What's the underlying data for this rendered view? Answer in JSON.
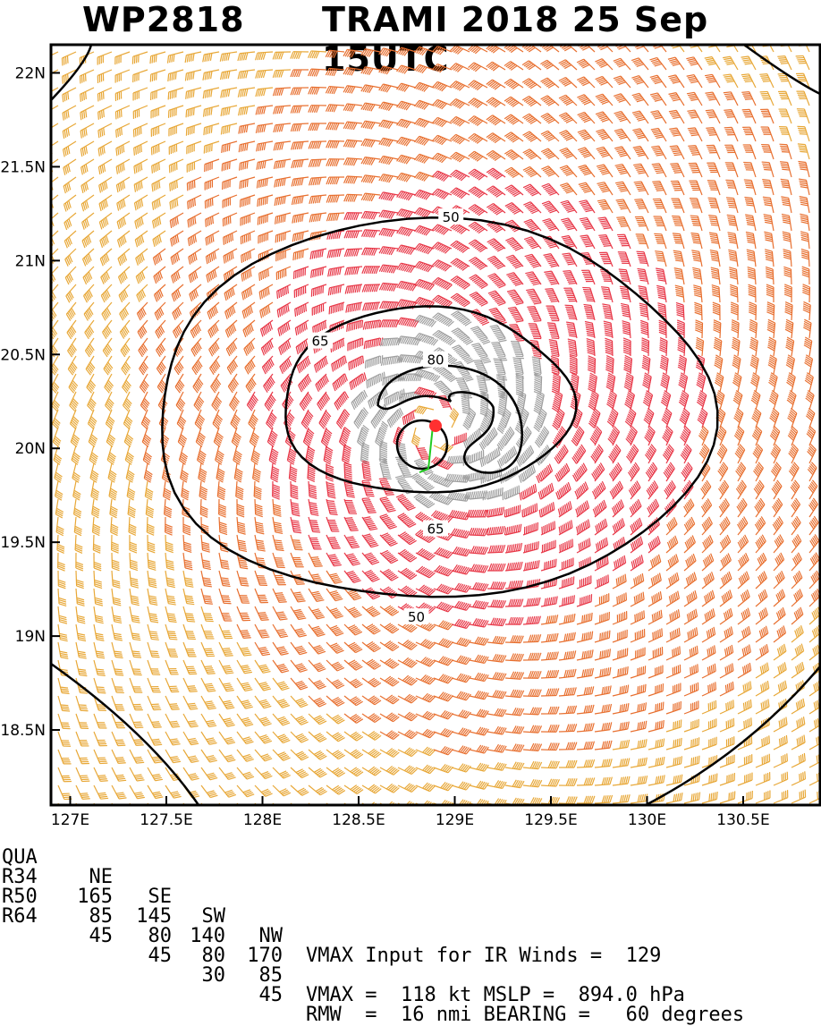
{
  "header": {
    "storm_id": "WP2818",
    "storm_title": "TRAMI 2018 25 Sep 15UTC"
  },
  "colors": {
    "barb_low": "#22cc22",
    "barb_mid": "#e8a838",
    "barb_high": "#e87030",
    "barb_top": "#e83848",
    "barb_max": "#a0a0a0",
    "contour": "#000000",
    "center_marker": "#ff3030",
    "motion_vector": "#22cc22"
  },
  "chart_data": {
    "type": "wind-barb-map",
    "xlim": [
      126.9,
      130.9
    ],
    "ylim": [
      18.1,
      22.15
    ],
    "x_ticks": [
      {
        "value": 127,
        "label": "127E"
      },
      {
        "value": 127.5,
        "label": "127.5E"
      },
      {
        "value": 128,
        "label": "128E"
      },
      {
        "value": 128.5,
        "label": "128.5E"
      },
      {
        "value": 129,
        "label": "129E"
      },
      {
        "value": 129.5,
        "label": "129.5E"
      },
      {
        "value": 130,
        "label": "130E"
      },
      {
        "value": 130.5,
        "label": "130.5E"
      }
    ],
    "y_ticks": [
      {
        "value": 22,
        "label": "22N"
      },
      {
        "value": 21.5,
        "label": "21.5N"
      },
      {
        "value": 21,
        "label": "21N"
      },
      {
        "value": 20.5,
        "label": "20.5N"
      },
      {
        "value": 20,
        "label": "20N"
      },
      {
        "value": 19.5,
        "label": "19.5N"
      },
      {
        "value": 19,
        "label": "19N"
      },
      {
        "value": 18.5,
        "label": "18.5N"
      }
    ],
    "center": {
      "lon": 128.9,
      "lat": 20.12
    },
    "vmax_kt": 118,
    "rmw_nmi": 16,
    "contours": [
      {
        "level": "50",
        "label_at": [
          128.98,
          21.23
        ],
        "label_at_2": [
          128.8,
          19.1
        ]
      },
      {
        "level": "65",
        "label_at": [
          128.3,
          20.57
        ],
        "label_at_2": [
          128.9,
          19.57
        ]
      },
      {
        "level": "80",
        "label_at": [
          128.9,
          20.47
        ]
      }
    ]
  },
  "footer": {
    "header_row": [
      "QUA",
      "NE",
      "SE",
      "SW",
      "NW"
    ],
    "rows": [
      {
        "label": "R34",
        "values": [
          "165",
          "145",
          "140",
          "170"
        ]
      },
      {
        "label": "R50",
        "values": [
          "85",
          "80",
          "80",
          "85"
        ]
      },
      {
        "label": "R64",
        "values": [
          "45",
          "45",
          "30",
          "45"
        ]
      }
    ],
    "line1_text": "VMAX Input for IR Winds =  129",
    "line3_text": "VMAX =  118 kt MSLP =  894.0 hPa",
    "line4_text": "RMW  =  16 nmi BEARING =   60 degrees"
  }
}
